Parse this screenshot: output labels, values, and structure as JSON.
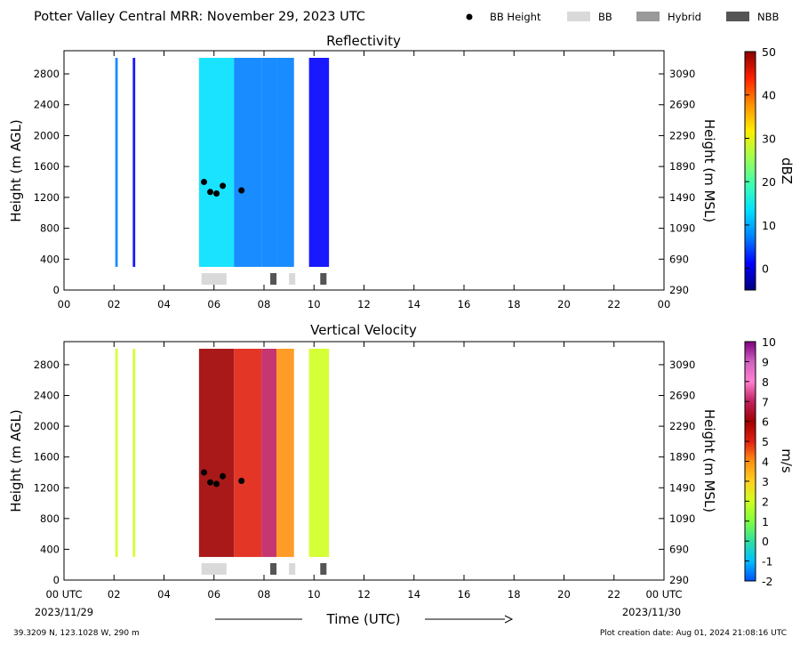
{
  "header": {
    "title": "Potter Valley Central MRR:  November 29, 2023 UTC",
    "legend": [
      {
        "label": "BB Height",
        "marker": "dot",
        "color": "#000000"
      },
      {
        "label": "BB",
        "marker": "box",
        "color": "#d9d9d9"
      },
      {
        "label": "Hybrid",
        "marker": "box",
        "color": "#999999"
      },
      {
        "label": "NBB",
        "marker": "box",
        "color": "#555555"
      }
    ]
  },
  "footer": {
    "location": "39.3209 N, 123.1028 W, 290 m",
    "creation": "Plot creation date: Aug 01, 2024 21:08:16 UTC",
    "time_label": "Time (UTC)",
    "date_start": "2023/11/29",
    "date_end": "2023/11/30"
  },
  "chart_data": [
    {
      "type": "heatmap",
      "title": "Reflectivity",
      "ylabel": "Height (m AGL)",
      "ylabel_right": "Height (m MSL)",
      "xlim": [
        0,
        24
      ],
      "ylim": [
        0,
        3100
      ],
      "x_ticks": [
        "00",
        "02",
        "04",
        "06",
        "08",
        "10",
        "12",
        "14",
        "16",
        "18",
        "20",
        "22",
        "00"
      ],
      "y_ticks": [
        0,
        400,
        800,
        1200,
        1600,
        2000,
        2400,
        2800
      ],
      "y_ticks_right": [
        290,
        690,
        1090,
        1490,
        1890,
        2290,
        2690,
        3090
      ],
      "colorbar": {
        "label": "dBZ",
        "min": -5,
        "max": 50,
        "ticks": [
          0,
          10,
          20,
          30,
          40,
          50
        ],
        "colors": [
          "#00007f",
          "#0000ff",
          "#0080ff",
          "#00e0ff",
          "#40ffb0",
          "#a0ff50",
          "#ffee00",
          "#ff9000",
          "#ff2000",
          "#8b0000"
        ]
      },
      "precip_intervals": [
        {
          "start": 2.05,
          "end": 2.15,
          "value": 8
        },
        {
          "start": 2.75,
          "end": 2.85,
          "value": 5
        },
        {
          "start": 5.4,
          "end": 6.8,
          "value": 13
        },
        {
          "start": 6.8,
          "end": 7.9,
          "value": 6
        },
        {
          "start": 7.9,
          "end": 8.5,
          "value": 11
        },
        {
          "start": 8.5,
          "end": 9.2,
          "value": 7
        },
        {
          "start": 9.8,
          "end": 10.6,
          "value": 4
        }
      ],
      "bb_height": [
        {
          "time": 5.6,
          "height": 1400
        },
        {
          "time": 5.85,
          "height": 1270
        },
        {
          "time": 6.1,
          "height": 1250
        },
        {
          "time": 6.35,
          "height": 1350
        },
        {
          "time": 7.1,
          "height": 1290
        }
      ],
      "bb_type": [
        {
          "start": 5.5,
          "end": 6.5,
          "type": "BB"
        },
        {
          "start": 8.25,
          "end": 8.5,
          "type": "NBB"
        },
        {
          "start": 9.0,
          "end": 9.25,
          "type": "BB"
        },
        {
          "start": 10.25,
          "end": 10.5,
          "type": "NBB"
        }
      ]
    },
    {
      "type": "heatmap",
      "title": "Vertical Velocity",
      "ylabel": "Height (m AGL)",
      "ylabel_right": "Height (m MSL)",
      "xlim": [
        0,
        24
      ],
      "ylim": [
        0,
        3100
      ],
      "x_ticks": [
        "00 UTC",
        "02",
        "04",
        "06",
        "08",
        "10",
        "12",
        "14",
        "16",
        "18",
        "20",
        "22",
        "00 UTC"
      ],
      "y_ticks": [
        0,
        400,
        800,
        1200,
        1600,
        2000,
        2400,
        2800
      ],
      "y_ticks_right": [
        290,
        690,
        1090,
        1490,
        1890,
        2290,
        2690,
        3090
      ],
      "colorbar": {
        "label": "m/s",
        "min": -2,
        "max": 10,
        "ticks": [
          -2,
          -1,
          0,
          1,
          2,
          3,
          4,
          5,
          6,
          7,
          8,
          9,
          10
        ],
        "colors": [
          "#0050ff",
          "#00c0ff",
          "#30e0a0",
          "#80ff40",
          "#d0ff20",
          "#ffd020",
          "#ff9010",
          "#e02010",
          "#a00000",
          "#c02060",
          "#ff80d0",
          "#d060c0",
          "#800080"
        ]
      },
      "precip_intervals": [
        {
          "start": 2.05,
          "end": 2.15,
          "value": 2
        },
        {
          "start": 2.75,
          "end": 2.85,
          "value": 2
        },
        {
          "start": 5.4,
          "end": 6.8,
          "value": 6
        },
        {
          "start": 6.8,
          "end": 7.9,
          "value": 5
        },
        {
          "start": 7.9,
          "end": 8.5,
          "value": 7
        },
        {
          "start": 8.5,
          "end": 9.2,
          "value": 4
        },
        {
          "start": 9.8,
          "end": 10.6,
          "value": 2
        }
      ],
      "bb_height": [
        {
          "time": 5.6,
          "height": 1400
        },
        {
          "time": 5.85,
          "height": 1270
        },
        {
          "time": 6.1,
          "height": 1250
        },
        {
          "time": 6.35,
          "height": 1350
        },
        {
          "time": 7.1,
          "height": 1290
        }
      ],
      "bb_type": [
        {
          "start": 5.5,
          "end": 6.5,
          "type": "BB"
        },
        {
          "start": 8.25,
          "end": 8.5,
          "type": "NBB"
        },
        {
          "start": 9.0,
          "end": 9.25,
          "type": "BB"
        },
        {
          "start": 10.25,
          "end": 10.5,
          "type": "NBB"
        }
      ]
    }
  ]
}
